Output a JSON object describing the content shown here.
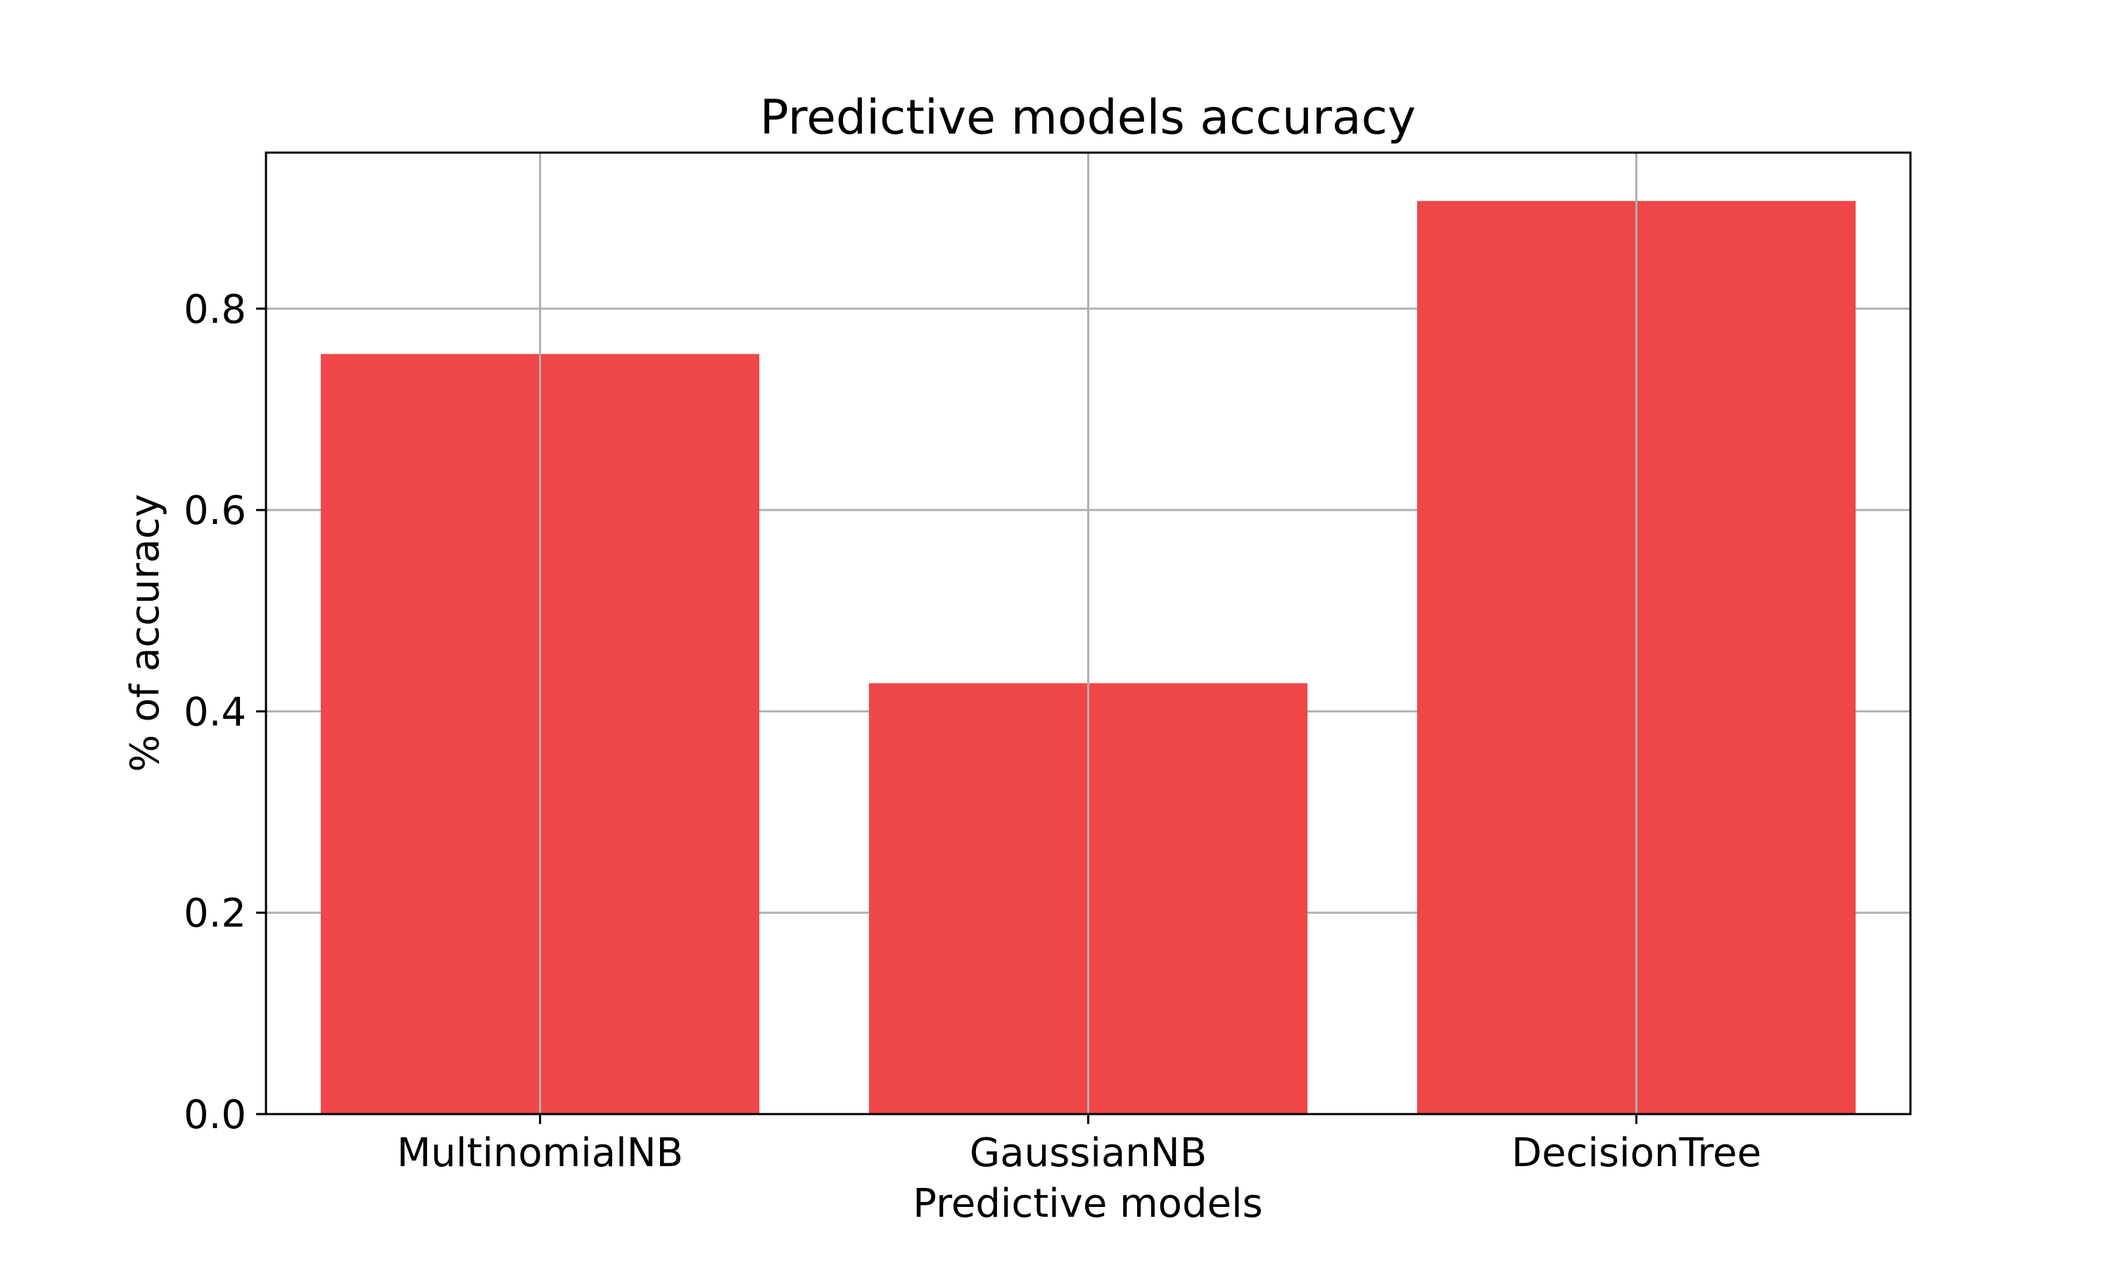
{
  "chart_data": {
    "type": "bar",
    "title": "Predictive models accuracy",
    "xlabel": "Predictive models",
    "ylabel": "% of accuracy",
    "categories": [
      "MultinomialNB",
      "GaussianNB",
      "DecisionTree"
    ],
    "values": [
      0.755,
      0.428,
      0.907
    ],
    "ylim": [
      0,
      0.955
    ],
    "yticks": [
      "0.0",
      "0.2",
      "0.4",
      "0.6",
      "0.8"
    ],
    "grid": true,
    "bar_color": "#ef4747"
  }
}
